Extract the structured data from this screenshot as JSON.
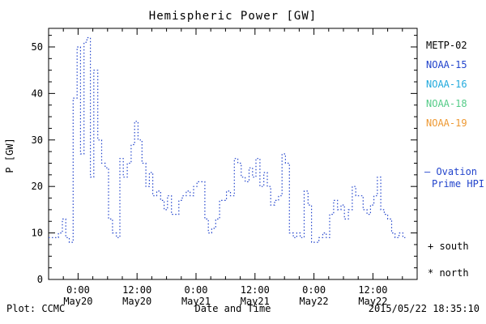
{
  "title": "Hemispheric Power [GW]",
  "chart_data": {
    "type": "line",
    "subtype": "step-dotted",
    "title": "Hemispheric Power [GW]",
    "xlabel": "Date and Time",
    "ylabel": "P [GW]",
    "x_unit": "hours from May19 18:00 UT",
    "xlim": [
      0,
      75
    ],
    "ylim": [
      0,
      54
    ],
    "grid": false,
    "legend_position": "right-outside",
    "line_color": "#2244cc",
    "yticks": [
      0,
      10,
      20,
      30,
      40,
      50
    ],
    "xticks": [
      {
        "hour": 6,
        "time": "0:00",
        "date": "May20"
      },
      {
        "hour": 18,
        "time": "12:00",
        "date": "May20"
      },
      {
        "hour": 30,
        "time": "0:00",
        "date": "May21"
      },
      {
        "hour": 42,
        "time": "12:00",
        "date": "May21"
      },
      {
        "hour": 54,
        "time": "0:00",
        "date": "May22"
      },
      {
        "hour": 66,
        "time": "12:00",
        "date": "May22"
      }
    ],
    "series": [
      {
        "name": "Ovation Prime HPI",
        "points": [
          [
            0,
            9
          ],
          [
            1,
            9
          ],
          [
            2,
            10
          ],
          [
            2.8,
            13
          ],
          [
            3.5,
            9
          ],
          [
            4.2,
            8
          ],
          [
            5,
            39
          ],
          [
            5.8,
            50
          ],
          [
            6.5,
            27
          ],
          [
            7.2,
            51
          ],
          [
            7.8,
            52
          ],
          [
            8.5,
            22
          ],
          [
            9.2,
            45
          ],
          [
            10,
            30
          ],
          [
            10.8,
            25
          ],
          [
            11.5,
            24
          ],
          [
            12.2,
            13
          ],
          [
            13,
            10
          ],
          [
            13.8,
            9
          ],
          [
            14.5,
            26
          ],
          [
            15.2,
            22
          ],
          [
            16,
            25
          ],
          [
            16.8,
            29
          ],
          [
            17.5,
            34
          ],
          [
            18.2,
            30
          ],
          [
            19,
            25
          ],
          [
            19.8,
            20
          ],
          [
            20.5,
            23
          ],
          [
            21.2,
            18
          ],
          [
            22,
            19
          ],
          [
            22.8,
            17
          ],
          [
            23.5,
            15
          ],
          [
            24.2,
            18
          ],
          [
            25,
            14
          ],
          [
            25.8,
            14
          ],
          [
            26.5,
            17
          ],
          [
            27.2,
            18
          ],
          [
            28,
            19
          ],
          [
            28.8,
            18
          ],
          [
            29.5,
            20
          ],
          [
            30.2,
            21
          ],
          [
            31,
            21
          ],
          [
            31.8,
            13
          ],
          [
            32.5,
            10
          ],
          [
            33.2,
            11
          ],
          [
            34,
            13
          ],
          [
            34.8,
            17
          ],
          [
            35.5,
            17
          ],
          [
            36.2,
            19
          ],
          [
            37,
            18
          ],
          [
            37.8,
            26
          ],
          [
            38.5,
            25
          ],
          [
            39.2,
            22
          ],
          [
            40,
            21
          ],
          [
            40.8,
            24
          ],
          [
            41.5,
            22
          ],
          [
            42.2,
            26
          ],
          [
            43,
            20
          ],
          [
            43.8,
            23
          ],
          [
            44.5,
            20
          ],
          [
            45.2,
            16
          ],
          [
            46,
            17
          ],
          [
            46.8,
            18
          ],
          [
            47.5,
            27
          ],
          [
            48.2,
            25
          ],
          [
            49,
            10
          ],
          [
            49.8,
            9
          ],
          [
            50.5,
            10
          ],
          [
            51.2,
            9
          ],
          [
            52,
            19
          ],
          [
            52.8,
            16
          ],
          [
            53.5,
            8
          ],
          [
            54.2,
            8
          ],
          [
            55,
            9
          ],
          [
            55.8,
            10
          ],
          [
            56.5,
            9
          ],
          [
            57.2,
            14
          ],
          [
            58,
            17
          ],
          [
            58.8,
            15
          ],
          [
            59.5,
            16
          ],
          [
            60.2,
            13
          ],
          [
            61,
            15
          ],
          [
            61.8,
            20
          ],
          [
            62.5,
            18
          ],
          [
            63.2,
            18
          ],
          [
            64,
            15
          ],
          [
            64.8,
            14
          ],
          [
            65.5,
            16
          ],
          [
            66.2,
            18
          ],
          [
            66.9,
            22
          ],
          [
            67.6,
            15
          ],
          [
            68.3,
            14
          ],
          [
            69,
            13
          ],
          [
            69.8,
            10
          ],
          [
            70.5,
            9
          ],
          [
            71.3,
            10
          ],
          [
            72.1,
            9
          ],
          [
            72.6,
            9
          ]
        ]
      }
    ]
  },
  "legend": {
    "satellites": [
      {
        "label": "METP-02",
        "color": "#000000"
      },
      {
        "label": "NOAA-15",
        "color": "#2244cc"
      },
      {
        "label": "NOAA-16",
        "color": "#22aadd"
      },
      {
        "label": "NOAA-18",
        "color": "#55cc88"
      },
      {
        "label": "NOAA-19",
        "color": "#ee9933"
      }
    ],
    "ovation_line1": "— Ovation",
    "ovation_line2": "Prime HPI",
    "ovation_color": "#2244cc",
    "south_marker": "+ south",
    "north_marker": "* north"
  },
  "footer": {
    "plot_credit": "Plot: CCMC",
    "xlabel": "Date and Time",
    "timestamp": "2015/05/22 18:35:10"
  }
}
